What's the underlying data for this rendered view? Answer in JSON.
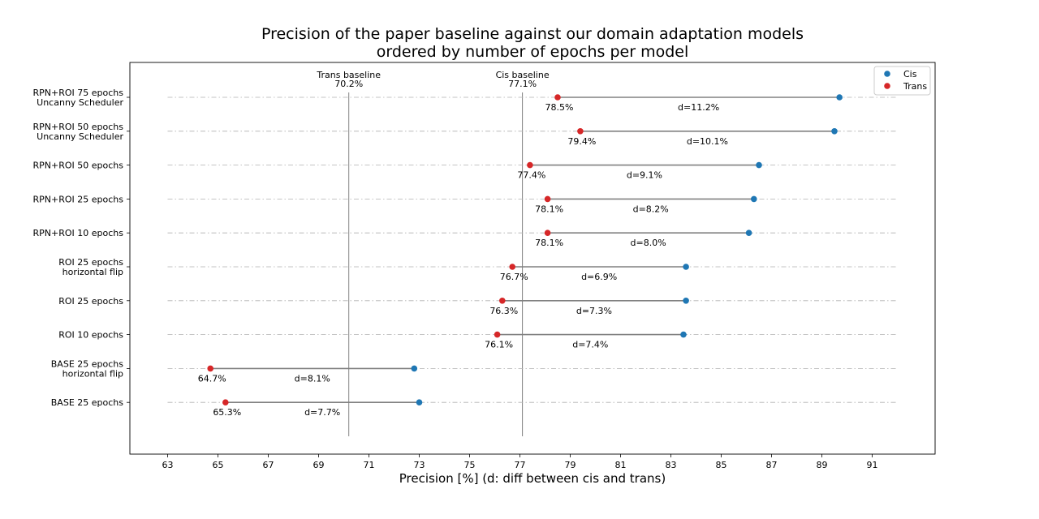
{
  "chart_data": {
    "type": "dumbbell",
    "title_lines": [
      "Precision of the paper baseline against our domain adaptation models",
      "ordered by number of epochs per model"
    ],
    "xlabel": "Precision [%]   (d: diff between cis and trans)",
    "xlim": [
      61.5,
      93.5
    ],
    "xticks": [
      63,
      65,
      67,
      69,
      71,
      73,
      75,
      77,
      79,
      81,
      83,
      85,
      87,
      89,
      91
    ],
    "grid_range": [
      63,
      92
    ],
    "legend": {
      "placement": "top-right",
      "cis_label": "Cis",
      "trans_label": "Trans"
    },
    "colors": {
      "cis": "#1f77b4",
      "trans": "#d62728",
      "connector": "#808080",
      "baseline": "#808080",
      "grid": "#b0b0b0"
    },
    "baselines": [
      {
        "name": "Trans baseline",
        "label": "Trans baseline",
        "value": 70.2,
        "value_label": "70.2%"
      },
      {
        "name": "Cis baseline",
        "label": "Cis baseline",
        "value": 77.1,
        "value_label": "77.1%"
      }
    ],
    "models": [
      {
        "label_lines": [
          "RPN+ROI 75 epochs",
          "Uncanny Scheduler"
        ],
        "cis": 89.7,
        "trans": 78.5,
        "trans_label": "78.5%",
        "diff_label": "d=11.2%"
      },
      {
        "label_lines": [
          "RPN+ROI 50 epochs",
          "Uncanny Scheduler"
        ],
        "cis": 89.5,
        "trans": 79.4,
        "trans_label": "79.4%",
        "diff_label": "d=10.1%"
      },
      {
        "label_lines": [
          "RPN+ROI 50 epochs"
        ],
        "cis": 86.5,
        "trans": 77.4,
        "trans_label": "77.4%",
        "diff_label": "d=9.1%"
      },
      {
        "label_lines": [
          "RPN+ROI 25 epochs"
        ],
        "cis": 86.3,
        "trans": 78.1,
        "trans_label": "78.1%",
        "diff_label": "d=8.2%"
      },
      {
        "label_lines": [
          "RPN+ROI 10 epochs"
        ],
        "cis": 86.1,
        "trans": 78.1,
        "trans_label": "78.1%",
        "diff_label": "d=8.0%"
      },
      {
        "label_lines": [
          "ROI 25 epochs",
          "horizontal flip"
        ],
        "cis": 83.6,
        "trans": 76.7,
        "trans_label": "76.7%",
        "diff_label": "d=6.9%"
      },
      {
        "label_lines": [
          "ROI 25 epochs"
        ],
        "cis": 83.6,
        "trans": 76.3,
        "trans_label": "76.3%",
        "diff_label": "d=7.3%"
      },
      {
        "label_lines": [
          "ROI 10 epochs"
        ],
        "cis": 83.5,
        "trans": 76.1,
        "trans_label": "76.1%",
        "diff_label": "d=7.4%"
      },
      {
        "label_lines": [
          "BASE 25 epochs",
          "horizontal flip"
        ],
        "cis": 72.8,
        "trans": 64.7,
        "trans_label": "64.7%",
        "diff_label": "d=8.1%"
      },
      {
        "label_lines": [
          "BASE 25 epochs"
        ],
        "cis": 73.0,
        "trans": 65.3,
        "trans_label": "65.3%",
        "diff_label": "d=7.7%"
      }
    ]
  }
}
